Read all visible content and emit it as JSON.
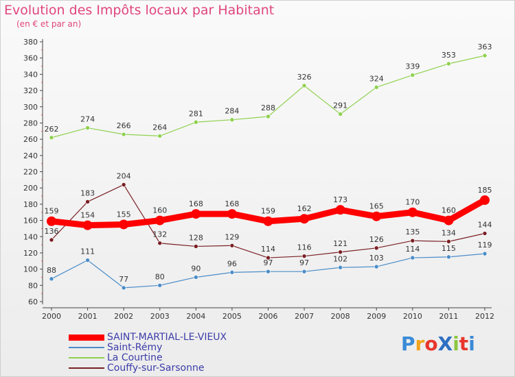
{
  "header": {
    "title": "Evolution des Impôts locaux par Habitant",
    "subtitle": "(en € et par an)"
  },
  "logo_text": "ProXiti",
  "chart_data": {
    "type": "line",
    "title": "Evolution des Impôts locaux par Habitant",
    "subtitle": "(en € et par an)",
    "xlabel": "",
    "ylabel": "",
    "categories": [
      "2000",
      "2001",
      "2002",
      "2003",
      "2004",
      "2005",
      "2006",
      "2007",
      "2008",
      "2009",
      "2010",
      "2011",
      "2012"
    ],
    "ylim": [
      60,
      380
    ],
    "yticks": [
      60,
      80,
      100,
      120,
      140,
      160,
      180,
      200,
      220,
      240,
      260,
      280,
      300,
      320,
      340,
      360,
      380
    ],
    "grid": false,
    "legend_position": "bottom-left",
    "series": [
      {
        "name": "SAINT-MARTIAL-LE-VIEUX",
        "color": "#ff0000",
        "values": [
          159,
          154,
          155,
          160,
          168,
          168,
          159,
          162,
          173,
          165,
          170,
          160,
          185
        ]
      },
      {
        "name": "Saint-Rémy",
        "color": "#4a8cc8",
        "values": [
          88,
          111,
          77,
          80,
          90,
          96,
          97,
          97,
          102,
          103,
          114,
          115,
          119
        ]
      },
      {
        "name": "La Courtine",
        "color": "#8fd14f",
        "values": [
          262,
          274,
          266,
          264,
          281,
          284,
          288,
          326,
          291,
          324,
          339,
          353,
          363
        ]
      },
      {
        "name": "Couffy-sur-Sarsonne",
        "color": "#7a1f24",
        "values": [
          136,
          183,
          204,
          132,
          128,
          129,
          114,
          116,
          121,
          126,
          135,
          134,
          144
        ]
      }
    ]
  }
}
